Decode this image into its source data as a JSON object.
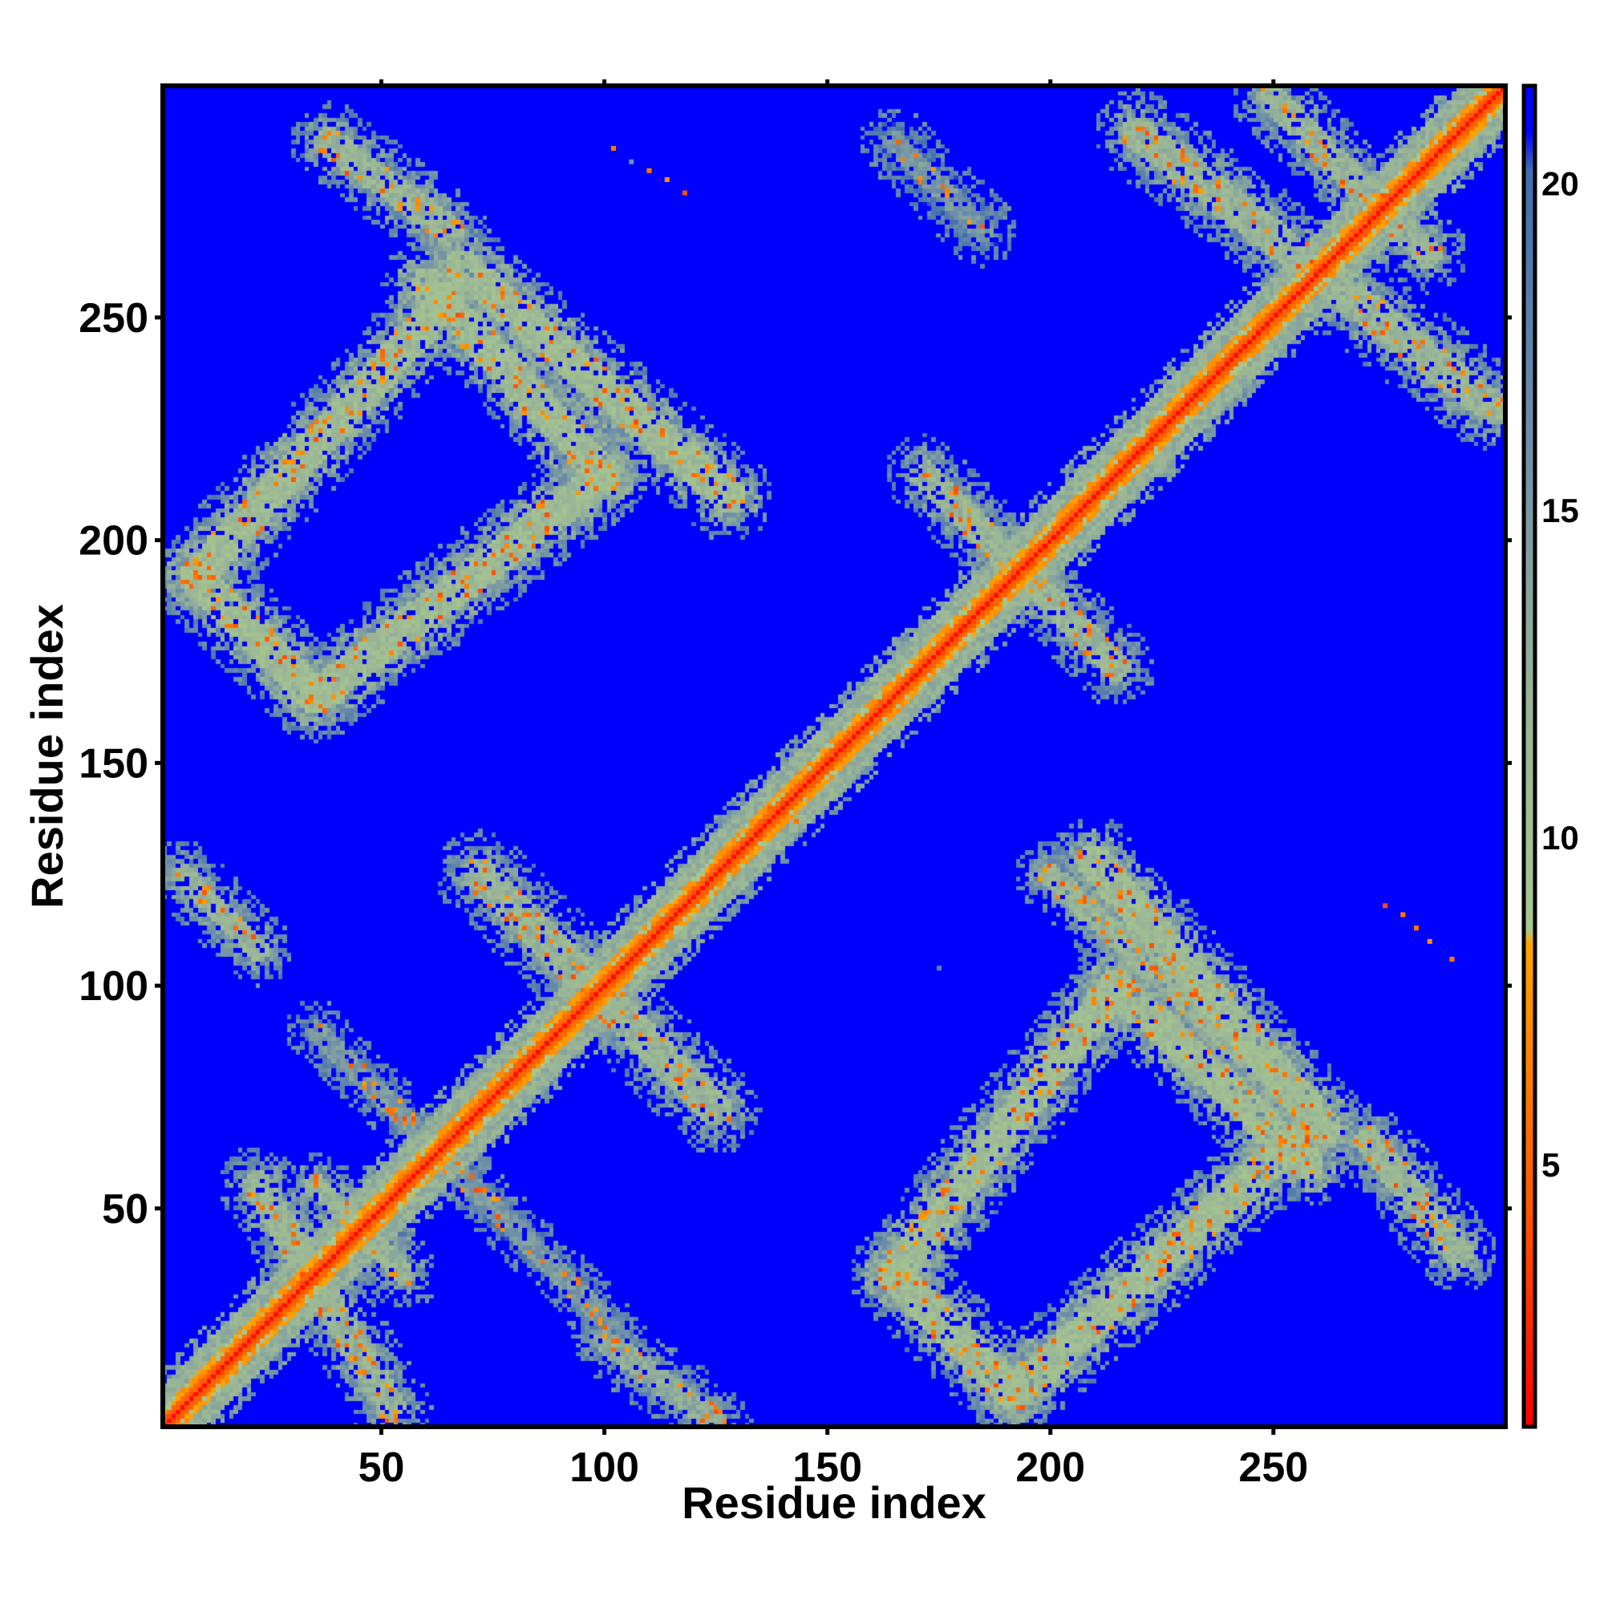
{
  "chart_data": {
    "type": "heatmap",
    "title": "",
    "xlabel": "Residue index",
    "ylabel": "Residue index",
    "xlim": [
      1,
      302
    ],
    "ylim": [
      1,
      302
    ],
    "x_ticks": [
      50,
      100,
      150,
      200,
      250
    ],
    "y_ticks": [
      50,
      100,
      150,
      200,
      250
    ],
    "colorbar": {
      "range": [
        1,
        21.5
      ],
      "ticks": [
        5,
        10,
        15,
        20
      ],
      "colormap": [
        {
          "value": 1,
          "color": "#ff0000"
        },
        {
          "value": 4.5,
          "color": "#ff5a00"
        },
        {
          "value": 8.4,
          "color": "#ffa500"
        },
        {
          "value": 8.6,
          "color": "#a9c88e"
        },
        {
          "value": 12,
          "color": "#9ab596"
        },
        {
          "value": 16,
          "color": "#6f8fa8"
        },
        {
          "value": 20.2,
          "color": "#3f6db0"
        },
        {
          "value": 20.8,
          "color": "#0000ff"
        }
      ]
    },
    "background_value": 21,
    "value_meaning": "pairwise distance (colorbar units)",
    "diagonal": {
      "start": 1,
      "end": 302,
      "core_value": 1.5,
      "band_value": 12
    },
    "contact_bands": [
      {
        "from": [
          8,
          192
        ],
        "to": [
          65,
          255
        ],
        "half_width": 7,
        "value": 11
      },
      {
        "from": [
          8,
          192
        ],
        "to": [
          35,
          165
        ],
        "half_width": 7,
        "value": 11
      },
      {
        "from": [
          35,
          165
        ],
        "to": [
          100,
          215
        ],
        "half_width": 7,
        "value": 11
      },
      {
        "from": [
          100,
          215
        ],
        "to": [
          60,
          258
        ],
        "half_width": 7,
        "value": 11
      },
      {
        "from": [
          68,
          262
        ],
        "to": [
          128,
          210
        ],
        "half_width": 7,
        "value": 11
      },
      {
        "from": [
          38,
          290
        ],
        "to": [
          65,
          270
        ],
        "half_width": 6,
        "value": 12
      },
      {
        "from": [
          172,
          215
        ],
        "to": [
          215,
          172
        ],
        "half_width": 6,
        "value": 12
      },
      {
        "from": [
          220,
          292
        ],
        "to": [
          300,
          230
        ],
        "half_width": 7,
        "value": 12
      },
      {
        "from": [
          250,
          300
        ],
        "to": [
          285,
          265
        ],
        "half_width": 6,
        "value": 12
      },
      {
        "from": [
          192,
          8
        ],
        "to": [
          255,
          65
        ],
        "half_width": 7,
        "value": 11
      },
      {
        "from": [
          165,
          35
        ],
        "to": [
          192,
          8
        ],
        "half_width": 7,
        "value": 11
      },
      {
        "from": [
          165,
          35
        ],
        "to": [
          215,
          100
        ],
        "half_width": 7,
        "value": 11
      },
      {
        "from": [
          215,
          100
        ],
        "to": [
          258,
          60
        ],
        "half_width": 7,
        "value": 11
      },
      {
        "from": [
          210,
          128
        ],
        "to": [
          262,
          68
        ],
        "half_width": 7,
        "value": 11
      },
      {
        "from": [
          200,
          125
        ],
        "to": [
          262,
          68
        ],
        "half_width": 5,
        "value": 12
      },
      {
        "from": [
          272,
          65
        ],
        "to": [
          292,
          40
        ],
        "half_width": 6,
        "value": 12
      },
      {
        "from": [
          72,
          125
        ],
        "to": [
          125,
          72
        ],
        "half_width": 7,
        "value": 12
      },
      {
        "from": [
          35,
          55
        ],
        "to": [
          55,
          35
        ],
        "half_width": 5,
        "value": 12
      },
      {
        "from": [
          5,
          125
        ],
        "to": [
          22,
          108
        ],
        "half_width": 5,
        "value": 12
      },
      {
        "from": [
          22,
          55
        ],
        "to": [
          52,
          5
        ],
        "half_width": 6,
        "value": 12
      },
      {
        "from": [
          100,
          20
        ],
        "to": [
          125,
          2
        ],
        "half_width": 5,
        "value": 13
      },
      {
        "from": [
          35,
          90
        ],
        "to": [
          100,
          25
        ],
        "half_width": 4,
        "value": 15
      },
      {
        "from": [
          165,
          290
        ],
        "to": [
          185,
          270
        ],
        "half_width": 5,
        "value": 15
      }
    ],
    "isolated_points": [
      {
        "x": 102,
        "y": 288,
        "value": 6
      },
      {
        "x": 106,
        "y": 285,
        "value": 16
      },
      {
        "x": 110,
        "y": 283,
        "value": 6
      },
      {
        "x": 114,
        "y": 281,
        "value": 7
      },
      {
        "x": 118,
        "y": 278,
        "value": 4
      },
      {
        "x": 175,
        "y": 104,
        "value": 18
      },
      {
        "x": 275,
        "y": 118,
        "value": 4
      },
      {
        "x": 279,
        "y": 116,
        "value": 6
      },
      {
        "x": 282,
        "y": 113,
        "value": 6
      },
      {
        "x": 285,
        "y": 110,
        "value": 7
      },
      {
        "x": 290,
        "y": 106,
        "value": 6
      },
      {
        "x": 137,
        "y": 140,
        "value": 5
      },
      {
        "x": 143,
        "y": 137,
        "value": 6
      }
    ]
  }
}
